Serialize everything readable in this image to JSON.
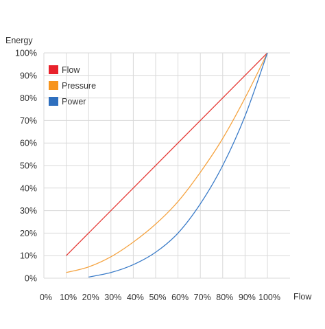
{
  "colors": {
    "grid": "#d9d9d9",
    "axis": "#bbbbbb"
  },
  "chart_data": {
    "type": "line",
    "title": "",
    "xlabel": "Flow",
    "ylabel": "Energy",
    "xlim": [
      0,
      100
    ],
    "ylim": [
      0,
      100
    ],
    "x_ticks": [
      0,
      10,
      20,
      30,
      40,
      50,
      60,
      70,
      80,
      90,
      100
    ],
    "y_ticks": [
      0,
      10,
      20,
      30,
      40,
      50,
      60,
      70,
      80,
      90,
      100
    ],
    "x_tick_labels": [
      "0%",
      "10%",
      "20%",
      "30%",
      "40%",
      "50%",
      "60%",
      "70%",
      "80%",
      "90%",
      "100%"
    ],
    "y_tick_labels": [
      "0%",
      "10%",
      "20%",
      "30%",
      "40%",
      "50%",
      "60%",
      "70%",
      "80%",
      "90%",
      "100%"
    ],
    "grid": true,
    "legend_position": "top-left",
    "series": [
      {
        "name": "Flow",
        "color": "#e53935",
        "legend_color": "#e8212b",
        "x": [
          10,
          100
        ],
        "y": [
          10,
          100
        ]
      },
      {
        "name": "Pressure",
        "color": "#f5a340",
        "legend_color": "#f7941d",
        "x": [
          10,
          20,
          30,
          40,
          50,
          60,
          70,
          80,
          90,
          100
        ],
        "y": [
          2.5,
          5,
          9.5,
          16,
          24,
          34,
          47,
          62,
          80,
          100
        ]
      },
      {
        "name": "Power",
        "color": "#3a7bc8",
        "legend_color": "#2e6fbe",
        "x": [
          20,
          30,
          40,
          50,
          60,
          70,
          80,
          90,
          100
        ],
        "y": [
          0.5,
          2.5,
          6,
          11.5,
          20,
          33,
          50,
          72,
          100
        ]
      }
    ]
  }
}
